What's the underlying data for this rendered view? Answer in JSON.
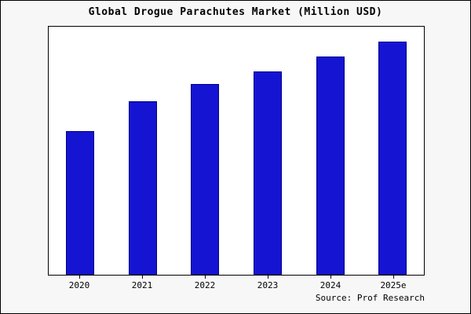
{
  "chart_data": {
    "type": "bar",
    "title": "Global Drogue Parachutes Market (Million USD)",
    "categories": [
      "2020",
      "2021",
      "2022",
      "2023",
      "2024",
      "2025e"
    ],
    "values": [
      58,
      70,
      77,
      82,
      88,
      94
    ],
    "xlabel": "",
    "ylabel": "",
    "ylim": [
      0,
      100
    ],
    "y_axis_ticks_visible": false,
    "grid": false,
    "legend": "none",
    "bar_color": "#1414d2",
    "bar_edge_color": "#00008b",
    "source_note": "Source: Prof Research"
  }
}
